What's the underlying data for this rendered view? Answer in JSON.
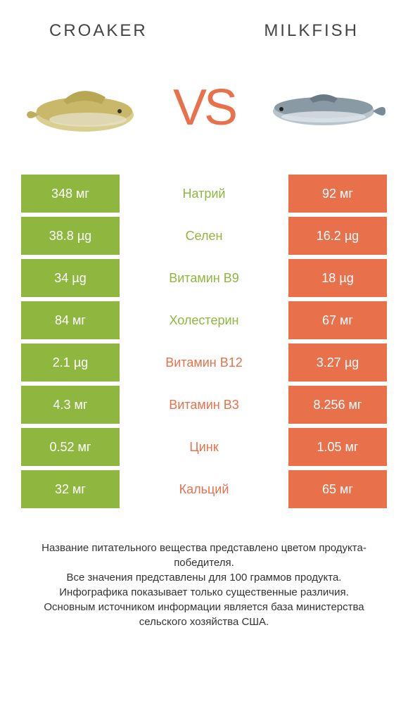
{
  "colors": {
    "green": "#8fb63f",
    "orange": "#e8714c",
    "title": "#444444",
    "footer": "#333333",
    "bg": "#ffffff"
  },
  "products": {
    "left": {
      "name": "CROAKER"
    },
    "right": {
      "name": "MILKFISH"
    }
  },
  "vs": "VS",
  "rows": [
    {
      "label": "Натрий",
      "left": "348 мг",
      "right": "92 мг",
      "winner": "left"
    },
    {
      "label": "Селен",
      "left": "38.8 µg",
      "right": "16.2 µg",
      "winner": "left"
    },
    {
      "label": "Витамин B9",
      "left": "34 µg",
      "right": "18 µg",
      "winner": "left"
    },
    {
      "label": "Холестерин",
      "left": "84 мг",
      "right": "67 мг",
      "winner": "left"
    },
    {
      "label": "Витамин B12",
      "left": "2.1 µg",
      "right": "3.27 µg",
      "winner": "right"
    },
    {
      "label": "Витамин B3",
      "left": "4.3 мг",
      "right": "8.256 мг",
      "winner": "right"
    },
    {
      "label": "Цинк",
      "left": "0.52 мг",
      "right": "1.05 мг",
      "winner": "right"
    },
    {
      "label": "Кальций",
      "left": "32 мг",
      "right": "65 мг",
      "winner": "right"
    }
  ],
  "footer": [
    "Название питательного вещества представлено цветом продукта-победителя.",
    "Все значения представлены для 100 граммов продукта.",
    "Инфографика показывает только существенные различия.",
    "Основным источником информации является база министерства сельского хозяйства США."
  ]
}
